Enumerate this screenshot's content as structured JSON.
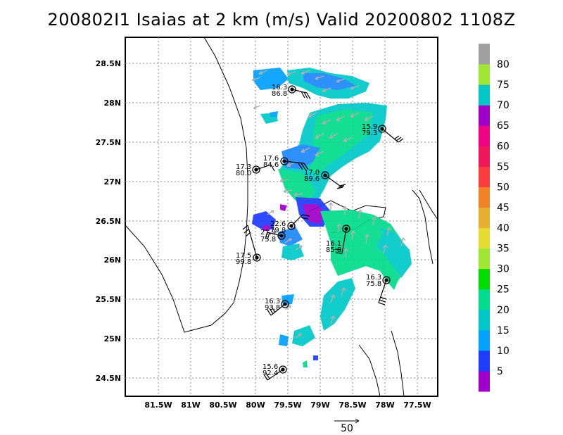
{
  "title": "200802I1 Isaias at 2 km (m/s) Valid 20200802 1108Z",
  "lon_ticks": [
    "81.5W",
    "81W",
    "80.5W",
    "80W",
    "79.5W",
    "79W",
    "78.5W",
    "78W",
    "77.5W"
  ],
  "lat_ticks": [
    "28.5N",
    "28N",
    "27.5N",
    "27N",
    "26.5N",
    "26N",
    "25.5N",
    "25N",
    "24.5N"
  ],
  "colorbar": {
    "labels": [
      "5",
      "10",
      "15",
      "20",
      "25",
      "30",
      "35",
      "40",
      "45",
      "50",
      "55",
      "60",
      "65",
      "70",
      "75",
      "80"
    ],
    "colors": [
      "#a000c8",
      "#1e3cff",
      "#00a0ff",
      "#00c8c8",
      "#00dc8c",
      "#00dc00",
      "#a0e632",
      "#e6dc32",
      "#e6af2d",
      "#f08228",
      "#fa3c3c",
      "#f0145a",
      "#f00082",
      "#a000c8",
      "#00c8c8",
      "#a0e632",
      "#a0a0a0"
    ]
  },
  "stations": [
    {
      "speed": "16.3",
      "dir": "86.8"
    },
    {
      "speed": "15.9",
      "dir": "79.3"
    },
    {
      "speed": "17.6",
      "dir": "84.6"
    },
    {
      "speed": "17.3",
      "dir": "80.0"
    },
    {
      "speed": "17.0",
      "dir": "89.6"
    },
    {
      "speed": "22.6",
      "dir": "79.8"
    },
    {
      "speed": "21.9",
      "dir": "75.8"
    },
    {
      "speed": "16.1",
      "dir": "85.8"
    },
    {
      "speed": "17.5",
      "dir": "99.8"
    },
    {
      "speed": "16.3",
      "dir": "75.8"
    },
    {
      "speed": "16.3",
      "dir": "93.8"
    },
    {
      "speed": "15.6",
      "dir": "92.4"
    }
  ],
  "vector_key": "50"
}
